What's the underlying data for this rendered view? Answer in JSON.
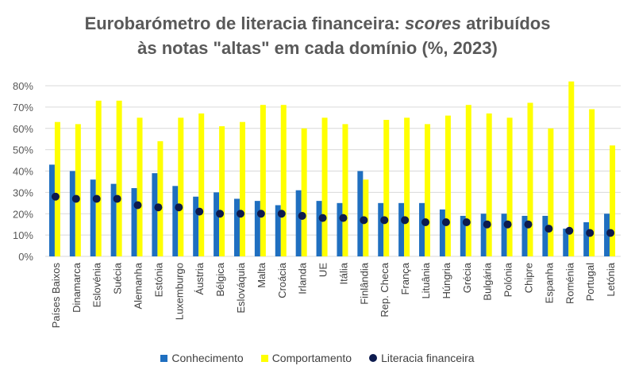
{
  "chart_data": {
    "type": "bar",
    "title_line1": "Eurobarómetro de literacia financeira: ",
    "title_italic": "scores",
    "title_line1_end": " atribuídos",
    "title_line2": "às notas \"altas\" em cada domínio (%, 2023)",
    "ylim": [
      0,
      80
    ],
    "yticks": [
      "0%",
      "10%",
      "20%",
      "30%",
      "40%",
      "50%",
      "60%",
      "70%",
      "80%"
    ],
    "grid": true,
    "legend_position": "bottom",
    "categories": [
      "Países Baixos",
      "Dinamarca",
      "Eslovénia",
      "Suécia",
      "Alemanha",
      "Estónia",
      "Luxemburgo",
      "Áustria",
      "Bélgica",
      "Eslováquia",
      "Malta",
      "Croácia",
      "Irlanda",
      "UE",
      "Itália",
      "Finlândia",
      "Rep. Checa",
      "França",
      "Lituânia",
      "Húngria",
      "Grécia",
      "Bulgária",
      "Polónia",
      "Chipre",
      "Espanha",
      "Roménia",
      "Portugal",
      "Letónia"
    ],
    "series": [
      {
        "name": "Conhecimento",
        "kind": "bar",
        "color": "#1f6fc0",
        "values": [
          43,
          40,
          36,
          34,
          32,
          39,
          33,
          28,
          30,
          27,
          26,
          24,
          31,
          26,
          25,
          40,
          25,
          25,
          25,
          22,
          19,
          20,
          20,
          19,
          19,
          13,
          16,
          20
        ]
      },
      {
        "name": "Comportamento",
        "kind": "bar",
        "color": "#ffff00",
        "values": [
          63,
          62,
          73,
          73,
          65,
          54,
          65,
          67,
          61,
          63,
          71,
          71,
          60,
          65,
          62,
          36,
          64,
          65,
          62,
          66,
          71,
          67,
          65,
          72,
          60,
          82,
          69,
          52
        ]
      },
      {
        "name": "Literacia financeira",
        "kind": "marker",
        "color": "#0d1b4f",
        "values": [
          28,
          27,
          27,
          27,
          24,
          23,
          23,
          21,
          20,
          20,
          20,
          20,
          19,
          18,
          18,
          17,
          17,
          17,
          16,
          16,
          16,
          15,
          15,
          15,
          13,
          12,
          11,
          11
        ]
      }
    ]
  }
}
